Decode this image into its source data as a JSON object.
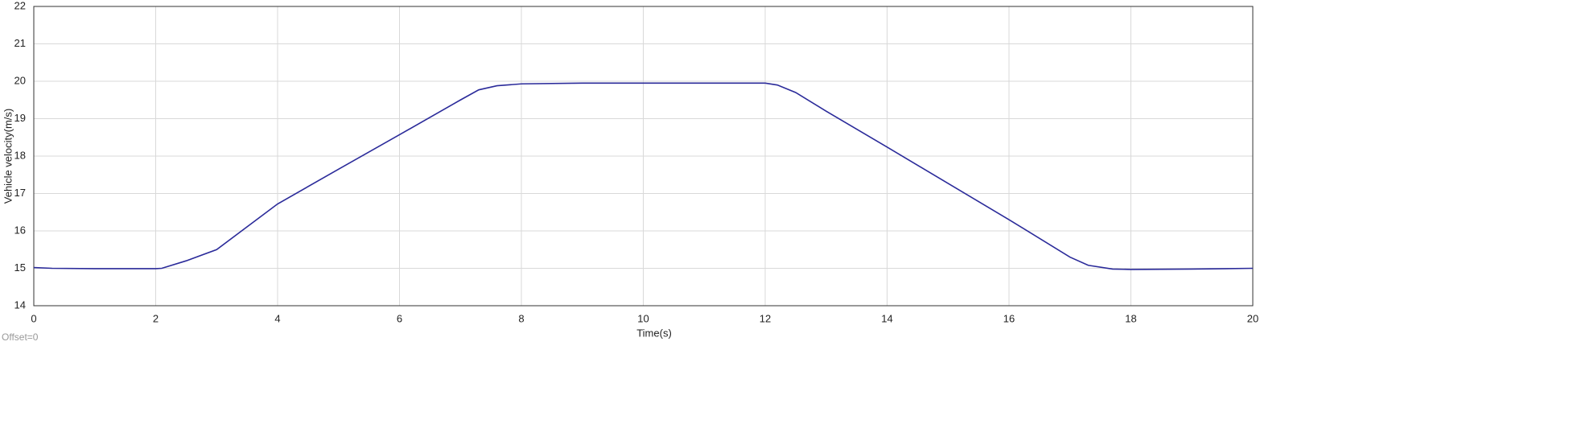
{
  "chart_data": {
    "type": "line",
    "xlabel": "Time(s)",
    "ylabel": "Vehicle velocity(m/s)",
    "annotation": "Offset=0",
    "x": [
      0,
      0.3,
      1,
      2,
      2.1,
      2.5,
      3,
      4,
      5,
      6,
      7,
      7.3,
      7.6,
      8,
      9,
      10,
      11,
      12,
      12.2,
      12.5,
      13,
      14,
      15,
      16,
      17,
      17.3,
      17.7,
      18,
      19,
      20
    ],
    "values": [
      15.02,
      15.0,
      14.99,
      14.99,
      15.0,
      15.2,
      15.5,
      16.72,
      17.65,
      18.57,
      19.5,
      19.77,
      19.88,
      19.93,
      19.95,
      19.95,
      19.95,
      19.95,
      19.9,
      19.7,
      19.2,
      18.24,
      17.27,
      16.3,
      15.3,
      15.08,
      14.98,
      14.97,
      14.98,
      15.0
    ],
    "color": "#2b2b9a",
    "xlim": [
      0,
      20
    ],
    "xticks": [
      0,
      2,
      4,
      6,
      8,
      10,
      12,
      14,
      16,
      18,
      20
    ],
    "ylim": [
      14,
      22
    ],
    "yticks": [
      14,
      15,
      16,
      17,
      18,
      19,
      20,
      21,
      22
    ],
    "grid": true
  }
}
